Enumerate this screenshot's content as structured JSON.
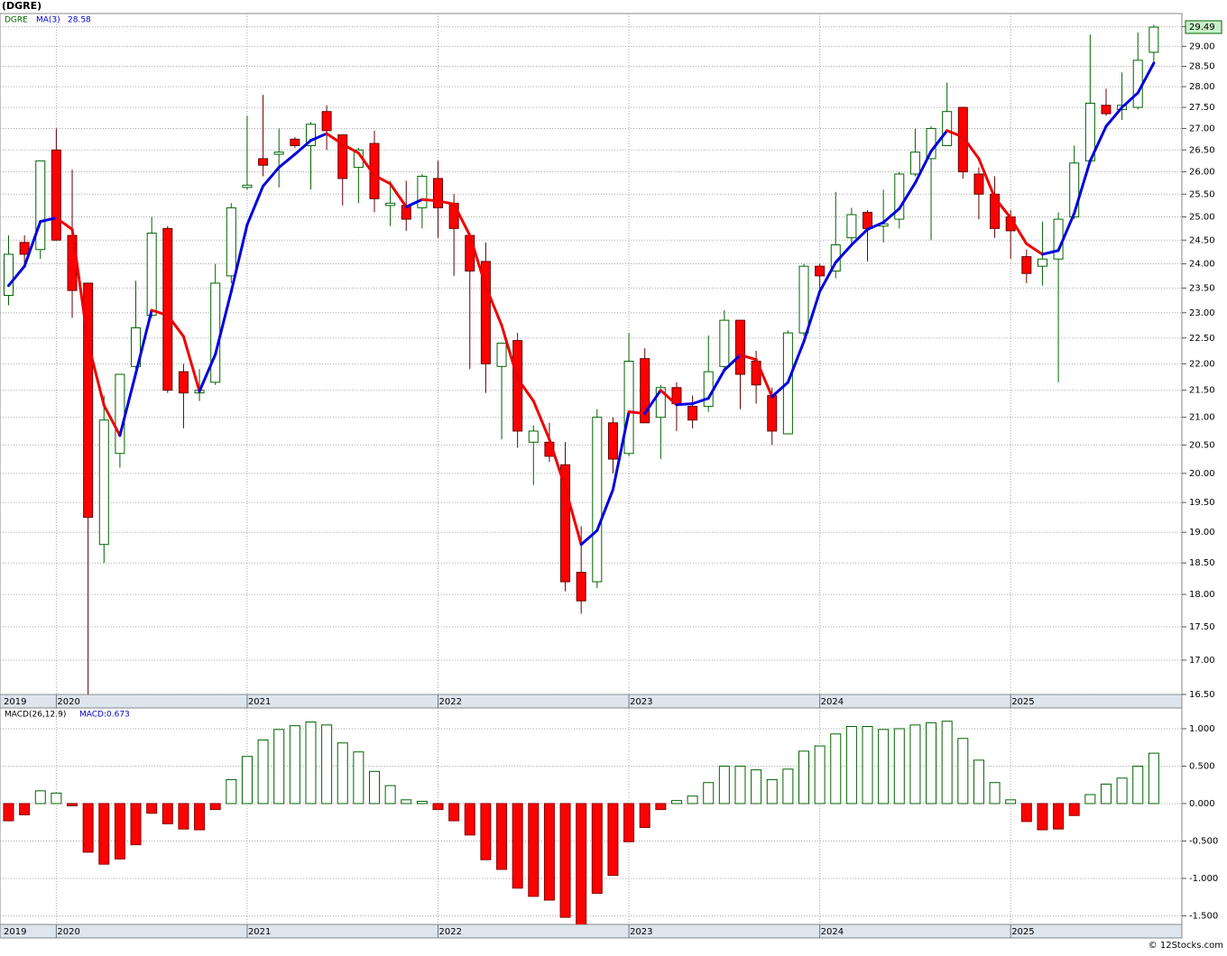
{
  "chart_data": [
    {
      "type": "candlestick",
      "title": "(DGRE)",
      "log_scale": true,
      "grid": true,
      "categories": [
        "2019",
        null,
        null,
        "2020",
        null,
        null,
        null,
        null,
        null,
        null,
        null,
        null,
        null,
        null,
        null,
        "2021",
        null,
        null,
        null,
        null,
        null,
        null,
        null,
        null,
        null,
        null,
        null,
        "2022",
        null,
        null,
        null,
        null,
        null,
        null,
        null,
        null,
        null,
        null,
        null,
        "2023",
        null,
        null,
        null,
        null,
        null,
        null,
        null,
        null,
        null,
        null,
        null,
        "2024",
        null,
        null,
        null,
        null,
        null,
        null,
        null,
        null,
        null,
        null,
        null,
        "2025",
        null,
        null,
        null,
        null,
        null,
        null,
        null,
        null,
        null
      ],
      "series": [
        {
          "name": "DGRE",
          "up_color": "#006400",
          "down_color": "#ff0000",
          "open": [
            23.35,
            24.45,
            24.3,
            26.5,
            24.6,
            23.6,
            18.8,
            20.35,
            21.95,
            22.95,
            24.75,
            21.85,
            21.45,
            21.65,
            23.75,
            25.65,
            26.3,
            26.4,
            26.75,
            26.6,
            27.4,
            26.85,
            26.1,
            26.65,
            25.25,
            25.25,
            25.2,
            25.85,
            25.3,
            24.6,
            24.05,
            21.95,
            22.45,
            20.55,
            20.55,
            20.15,
            18.35,
            18.2,
            20.9,
            20.35,
            22.1,
            21.0,
            21.55,
            21.2,
            21.2,
            21.95,
            22.85,
            22.05,
            21.4,
            20.7,
            22.6,
            23.95,
            23.85,
            24.55,
            25.1,
            24.8,
            24.95,
            25.95,
            26.3,
            26.6,
            27.5,
            25.95,
            25.5,
            25.0,
            24.15,
            23.95,
            24.1,
            25.0,
            26.25,
            27.55,
            27.45,
            27.5,
            28.85
          ],
          "high": [
            24.6,
            24.6,
            26.25,
            27.0,
            26.05,
            23.6,
            21.4,
            21.8,
            23.65,
            25.0,
            24.8,
            22.0,
            21.9,
            24.0,
            25.3,
            27.3,
            27.8,
            27.0,
            26.8,
            27.15,
            27.55,
            26.85,
            26.55,
            26.95,
            25.8,
            25.8,
            25.95,
            26.25,
            25.5,
            24.6,
            24.45,
            22.4,
            22.6,
            20.85,
            20.9,
            20.55,
            19.1,
            21.15,
            21.0,
            22.6,
            22.3,
            21.6,
            21.65,
            21.4,
            22.55,
            23.05,
            22.85,
            22.25,
            21.55,
            22.65,
            24.0,
            24.0,
            25.55,
            25.2,
            25.15,
            25.6,
            26.0,
            27.0,
            27.05,
            28.1,
            27.5,
            26.1,
            25.9,
            25.15,
            24.3,
            24.9,
            25.1,
            26.6,
            29.3,
            27.95,
            28.35,
            29.35,
            29.55
          ],
          "low": [
            23.15,
            24.0,
            24.1,
            24.5,
            22.9,
            16.4,
            18.5,
            20.1,
            21.9,
            22.9,
            21.45,
            20.8,
            21.3,
            21.6,
            23.6,
            25.6,
            25.9,
            25.65,
            26.55,
            25.6,
            26.5,
            25.25,
            25.3,
            25.1,
            24.8,
            24.7,
            24.75,
            24.55,
            23.75,
            21.9,
            21.45,
            20.6,
            20.45,
            19.8,
            20.2,
            18.05,
            17.7,
            18.1,
            20.0,
            20.3,
            20.9,
            20.25,
            20.75,
            20.8,
            21.1,
            21.9,
            21.15,
            21.25,
            20.5,
            20.7,
            22.55,
            23.4,
            23.7,
            24.4,
            24.05,
            24.45,
            24.75,
            25.9,
            24.5,
            26.6,
            25.85,
            24.95,
            24.55,
            24.1,
            23.6,
            23.55,
            21.65,
            24.95,
            26.2,
            27.3,
            27.2,
            27.45,
            28.5
          ],
          "close": [
            24.2,
            24.2,
            26.25,
            24.5,
            23.45,
            19.25,
            20.95,
            21.8,
            22.7,
            24.65,
            21.5,
            21.45,
            21.5,
            23.6,
            25.2,
            25.7,
            26.15,
            26.45,
            26.6,
            27.1,
            26.95,
            25.85,
            26.5,
            25.4,
            25.3,
            24.95,
            25.9,
            25.2,
            24.75,
            23.85,
            22.0,
            22.4,
            20.75,
            20.75,
            20.3,
            18.2,
            17.9,
            21.0,
            20.25,
            22.05,
            20.9,
            21.55,
            21.25,
            20.95,
            21.85,
            22.85,
            21.8,
            21.6,
            20.75,
            22.6,
            23.95,
            23.75,
            24.4,
            25.05,
            24.75,
            24.85,
            25.95,
            26.45,
            27.0,
            27.4,
            26.0,
            25.5,
            24.75,
            24.7,
            23.8,
            24.1,
            24.95,
            26.2,
            27.6,
            27.35,
            27.55,
            28.65,
            29.49
          ],
          "last_value_label": "29.49"
        },
        {
          "name": "MA(3)",
          "up_color": "#0000dd",
          "down_color": "#ee0000",
          "values": [
            23.55,
            23.95,
            24.9,
            24.98,
            24.73,
            22.4,
            21.22,
            20.67,
            21.82,
            23.05,
            22.95,
            22.53,
            21.48,
            22.18,
            23.43,
            24.83,
            25.68,
            26.1,
            26.4,
            26.72,
            26.88,
            26.63,
            26.43,
            25.92,
            25.73,
            25.22,
            25.38,
            25.35,
            25.28,
            24.6,
            23.53,
            22.75,
            21.72,
            21.3,
            20.6,
            19.75,
            18.8,
            19.03,
            19.72,
            21.1,
            21.07,
            21.5,
            21.23,
            21.25,
            21.35,
            21.88,
            22.17,
            22.08,
            21.38,
            21.65,
            22.43,
            23.43,
            24.03,
            24.4,
            24.73,
            24.88,
            25.18,
            25.75,
            26.47,
            26.95,
            26.8,
            26.3,
            25.42,
            24.98,
            24.42,
            24.2,
            24.28,
            25.08,
            26.25,
            27.05,
            27.5,
            27.85,
            28.58
          ],
          "last_value_label": "28.58"
        }
      ],
      "ylim": [
        16.5,
        29.84
      ],
      "yticks": [
        {
          "value": 16.5,
          "label": "16.50"
        },
        {
          "value": 17,
          "label": "17.00"
        },
        {
          "value": 17.5,
          "label": "17.50"
        },
        {
          "value": 18,
          "label": "18.00"
        },
        {
          "value": 18.5,
          "label": "18.50"
        },
        {
          "value": 19,
          "label": "19.00"
        },
        {
          "value": 19.5,
          "label": "19.50"
        },
        {
          "value": 20,
          "label": "20.00"
        },
        {
          "value": 20.5,
          "label": "20.50"
        },
        {
          "value": 21,
          "label": "21.00"
        },
        {
          "value": 21.5,
          "label": "21.50"
        },
        {
          "value": 22,
          "label": "22.00"
        },
        {
          "value": 22.5,
          "label": "22.50"
        },
        {
          "value": 23,
          "label": "23.00"
        },
        {
          "value": 23.5,
          "label": "23.50"
        },
        {
          "value": 24,
          "label": "24.00"
        },
        {
          "value": 24.5,
          "label": "24.50"
        },
        {
          "value": 25,
          "label": "25.00"
        },
        {
          "value": 25.5,
          "label": "25.50"
        },
        {
          "value": 26,
          "label": "26.00"
        },
        {
          "value": 26.5,
          "label": "26.50"
        },
        {
          "value": 27,
          "label": "27.00"
        },
        {
          "value": 27.5,
          "label": "27.50"
        },
        {
          "value": 28,
          "label": "28.00"
        },
        {
          "value": 28.5,
          "label": "28.50"
        },
        {
          "value": 29,
          "label": "29.00"
        },
        {
          "value": 29.5,
          "label": "29.50"
        }
      ]
    },
    {
      "type": "bar",
      "grid": true,
      "categories": [
        "2019",
        null,
        null,
        "2020",
        null,
        null,
        null,
        null,
        null,
        null,
        null,
        null,
        null,
        null,
        null,
        "2021",
        null,
        null,
        null,
        null,
        null,
        null,
        null,
        null,
        null,
        null,
        null,
        "2022",
        null,
        null,
        null,
        null,
        null,
        null,
        null,
        null,
        null,
        null,
        null,
        "2023",
        null,
        null,
        null,
        null,
        null,
        null,
        null,
        null,
        null,
        null,
        null,
        "2024",
        null,
        null,
        null,
        null,
        null,
        null,
        null,
        null,
        null,
        null,
        null,
        "2025",
        null,
        null,
        null,
        null,
        null,
        null,
        null,
        null,
        null
      ],
      "series": [
        {
          "name": "MACD(26,12,9)",
          "up_color": "#006400",
          "down_color": "#ff0000",
          "values": [
            -0.23,
            -0.15,
            0.17,
            0.14,
            -0.03,
            -0.65,
            -0.81,
            -0.74,
            -0.55,
            -0.13,
            -0.27,
            -0.34,
            -0.35,
            -0.08,
            0.32,
            0.63,
            0.85,
            0.99,
            1.04,
            1.09,
            1.05,
            0.81,
            0.69,
            0.43,
            0.24,
            0.05,
            0.03,
            -0.08,
            -0.23,
            -0.42,
            -0.75,
            -0.88,
            -1.13,
            -1.24,
            -1.29,
            -1.52,
            -1.62,
            -1.2,
            -0.96,
            -0.51,
            -0.32,
            -0.08,
            0.04,
            0.1,
            0.28,
            0.5,
            0.5,
            0.45,
            0.32,
            0.46,
            0.7,
            0.77,
            0.93,
            1.03,
            1.03,
            0.99,
            1.0,
            1.05,
            1.08,
            1.1,
            0.87,
            0.58,
            0.28,
            0.05,
            -0.24,
            -0.35,
            -0.34,
            -0.16,
            0.12,
            0.26,
            0.34,
            0.5,
            0.673
          ],
          "last_value_label": "MACD:0.673"
        }
      ],
      "ylim": [
        -1.615,
        1.277
      ],
      "yticks": [
        {
          "value": -1.5,
          "label": "-1.500"
        },
        {
          "value": -1,
          "label": "-1.000"
        },
        {
          "value": -0.5,
          "label": "-0.500"
        },
        {
          "value": 0,
          "label": "0.000"
        },
        {
          "value": 0.5,
          "label": "0.500"
        },
        {
          "value": 1,
          "label": "1.000"
        }
      ]
    }
  ],
  "footer": "© 12Stocks.com"
}
